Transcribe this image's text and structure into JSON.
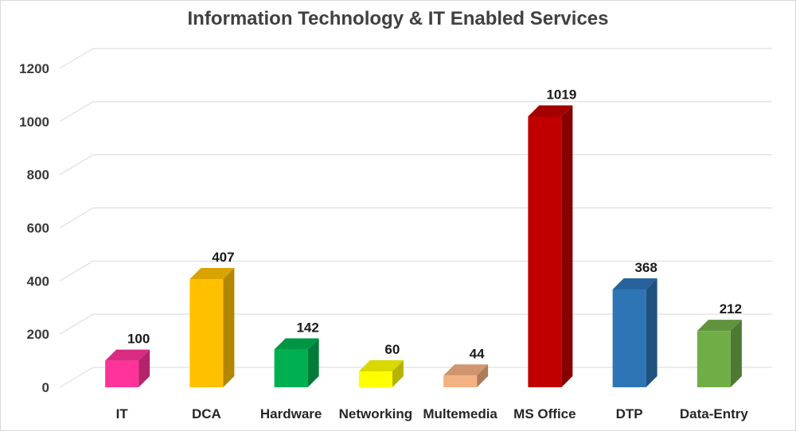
{
  "chart_data": {
    "type": "bar",
    "title": "Information Technology & IT Enabled Services",
    "categories": [
      "IT",
      "DCA",
      "Hardware",
      "Networking",
      "Multemedia",
      "MS Office",
      "DTP",
      "Data-Entry"
    ],
    "values": [
      100,
      407,
      142,
      60,
      44,
      1019,
      368,
      212
    ],
    "colors": [
      "#ff3399",
      "#ffc000",
      "#00b050",
      "#ffff00",
      "#f4b183",
      "#c00000",
      "#2e75b6",
      "#70ad47"
    ],
    "ylim": [
      0,
      1200
    ],
    "yticks": [
      0,
      200,
      400,
      600,
      800,
      1000,
      1200
    ],
    "xlabel": "",
    "ylabel": "",
    "grid": true,
    "data_labels": true
  }
}
